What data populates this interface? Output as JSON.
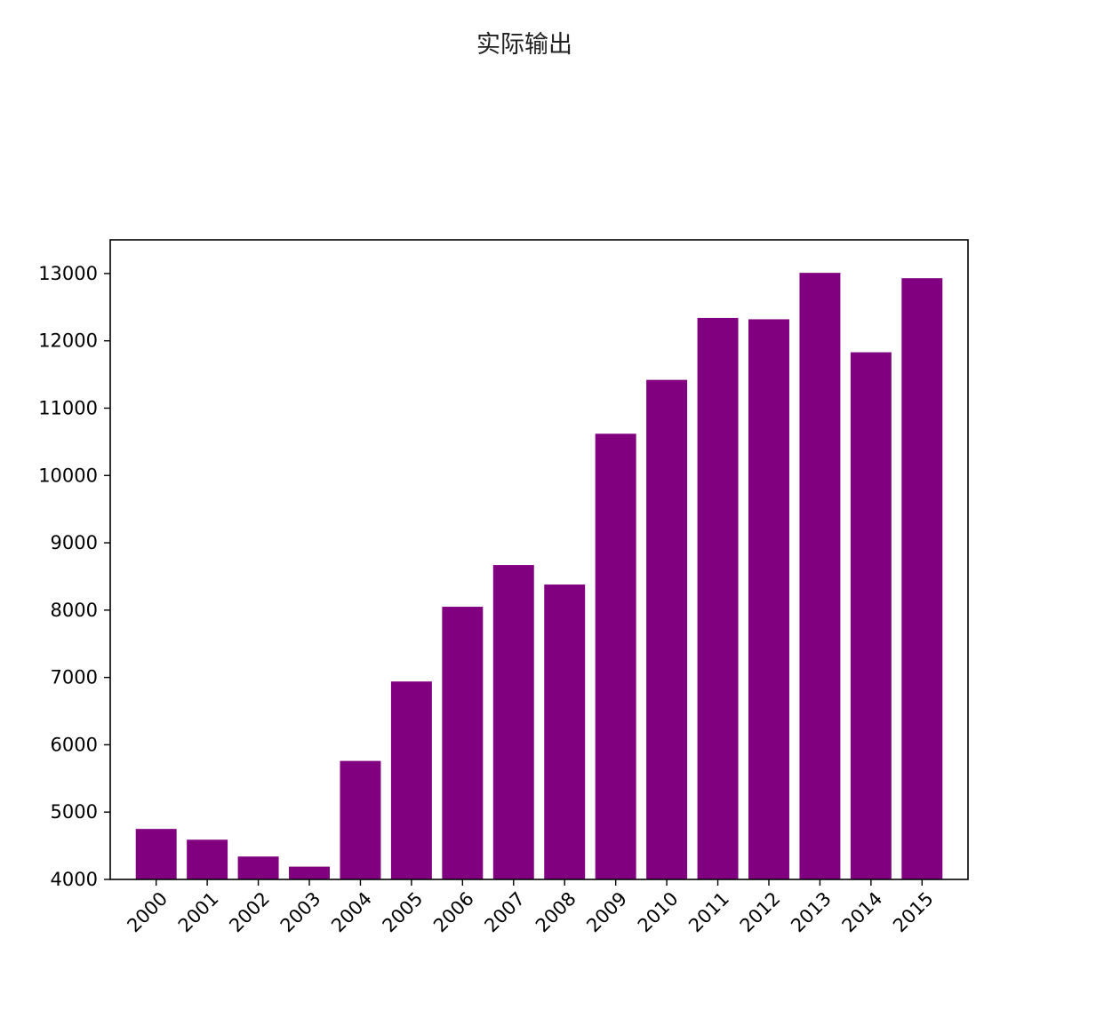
{
  "page": {
    "heading": "实际输出"
  },
  "chart_data": {
    "type": "bar",
    "title": "",
    "xlabel": "",
    "ylabel": "",
    "categories": [
      "2000",
      "2001",
      "2002",
      "2003",
      "2004",
      "2005",
      "2006",
      "2007",
      "2008",
      "2009",
      "2010",
      "2011",
      "2012",
      "2013",
      "2014",
      "2015"
    ],
    "values": [
      4750,
      4590,
      4340,
      4190,
      5760,
      6940,
      8050,
      8670,
      8380,
      10620,
      11420,
      12340,
      12320,
      13010,
      11830,
      12930
    ],
    "ylim": [
      4000,
      13500
    ],
    "yticks": [
      "4000",
      "5000",
      "6000",
      "7000",
      "8000",
      "9000",
      "10000",
      "11000",
      "12000",
      "13000"
    ],
    "bar_color": "#800080",
    "grid": false,
    "legend": "none"
  }
}
